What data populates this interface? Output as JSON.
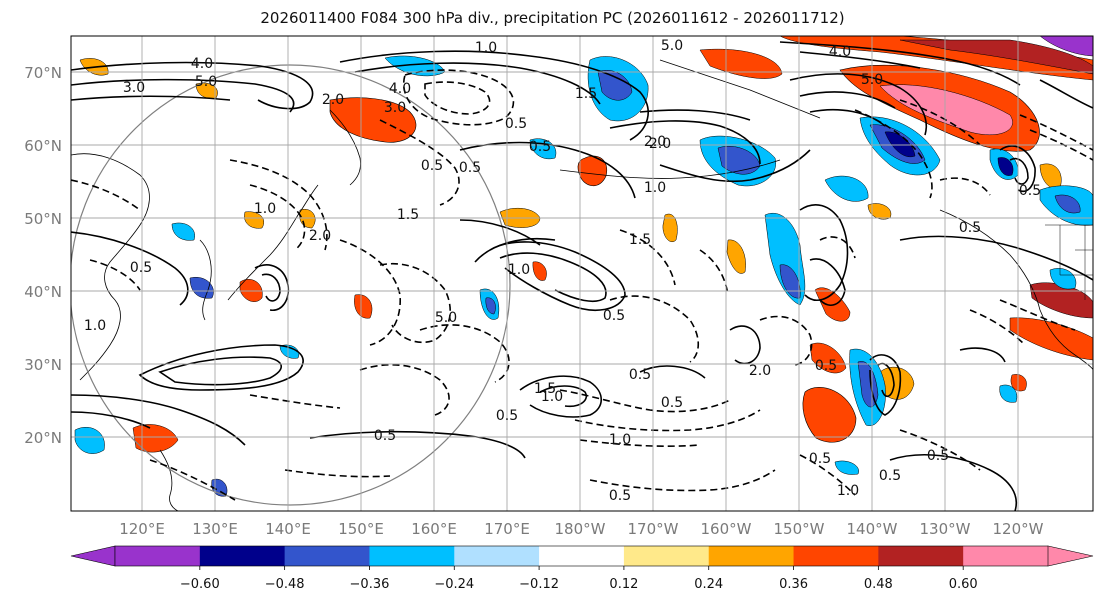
{
  "title": "2026011400 F084 300 hPa div., precipitation PC (2026011612 - 2026011712)",
  "lat_labels": [
    "70°N",
    "60°N",
    "50°N",
    "40°N",
    "30°N",
    "20°N"
  ],
  "lon_labels": [
    "120°E",
    "130°E",
    "140°E",
    "150°E",
    "160°E",
    "170°E",
    "180°W",
    "170°W",
    "160°W",
    "150°W",
    "140°W",
    "130°W",
    "120°W"
  ],
  "colorbar": {
    "colors": [
      "#9933cc",
      "#00008b",
      "#3355cc",
      "#00bfff",
      "#b0e0ff",
      "#ffffff",
      "#ffe98a",
      "#ffa500",
      "#ff4500",
      "#b22222",
      "#ff88aa"
    ],
    "tick_labels": [
      "−0.60",
      "−0.48",
      "−0.36",
      "−0.24",
      "−0.12",
      "0.12",
      "0.24",
      "0.36",
      "0.48",
      "0.60"
    ]
  },
  "contour_labels": [
    "4.0",
    "5.0",
    "3.0",
    "1.0",
    "5.0",
    "4.0",
    "0.5",
    "3.0",
    "2.0",
    "1.5",
    "0.5",
    "0.5",
    "1.5",
    "2.0",
    "1.0",
    "0.5",
    "1.5",
    "1.0",
    "2.0",
    "0.5",
    "1.0",
    "5.0",
    "0.5",
    "1.0",
    "0.5",
    "1.5",
    "1.0",
    "0.5",
    "2.0",
    "0.5",
    "0.5",
    "1.0",
    "0.5",
    "0.5",
    "0.5",
    "0.5",
    "1.0",
    "0.5",
    "0.5",
    "4.0",
    "5.0",
    "2.0",
    "0.5"
  ]
}
